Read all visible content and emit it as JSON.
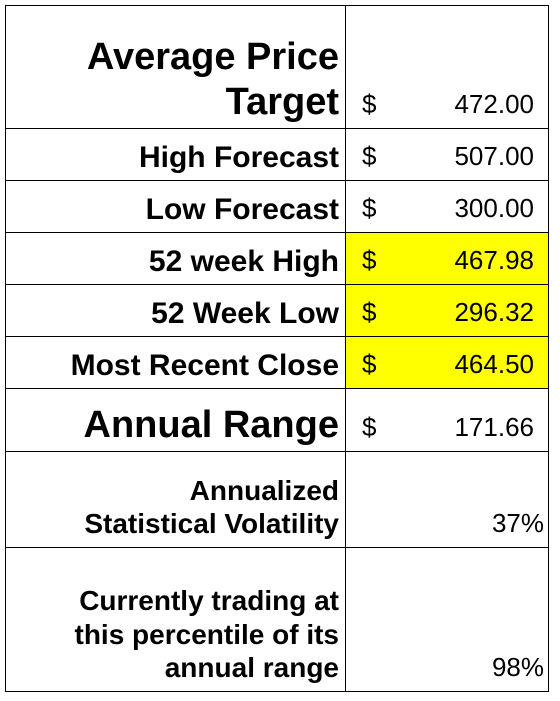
{
  "rows": [
    {
      "label_lines": [
        "Average Price",
        "Target"
      ],
      "currency": "$",
      "value": "472.00",
      "highlight": false
    },
    {
      "label_lines": [
        "High Forecast"
      ],
      "currency": "$",
      "value": "507.00",
      "highlight": false
    },
    {
      "label_lines": [
        "Low Forecast"
      ],
      "currency": "$",
      "value": "300.00",
      "highlight": false
    },
    {
      "label_lines": [
        "52 week High"
      ],
      "currency": "$",
      "value": "467.98",
      "highlight": true
    },
    {
      "label_lines": [
        "52 Week Low"
      ],
      "currency": "$",
      "value": "296.32",
      "highlight": true
    },
    {
      "label_lines": [
        "Most Recent Close"
      ],
      "currency": "$",
      "value": "464.50",
      "highlight": true
    },
    {
      "label_lines": [
        "Annual Range"
      ],
      "currency": "$",
      "value": "171.66",
      "highlight": false
    },
    {
      "label_lines": [
        "Annualized",
        "Statistical Volatility"
      ],
      "currency": "",
      "value": "37%",
      "highlight": false
    },
    {
      "label_lines": [
        "Currently trading at",
        "this percentile of its",
        "annual range"
      ],
      "currency": "",
      "value": "98%",
      "highlight": false
    }
  ],
  "colors": {
    "highlight": "#ffff00",
    "border": "#000000"
  }
}
